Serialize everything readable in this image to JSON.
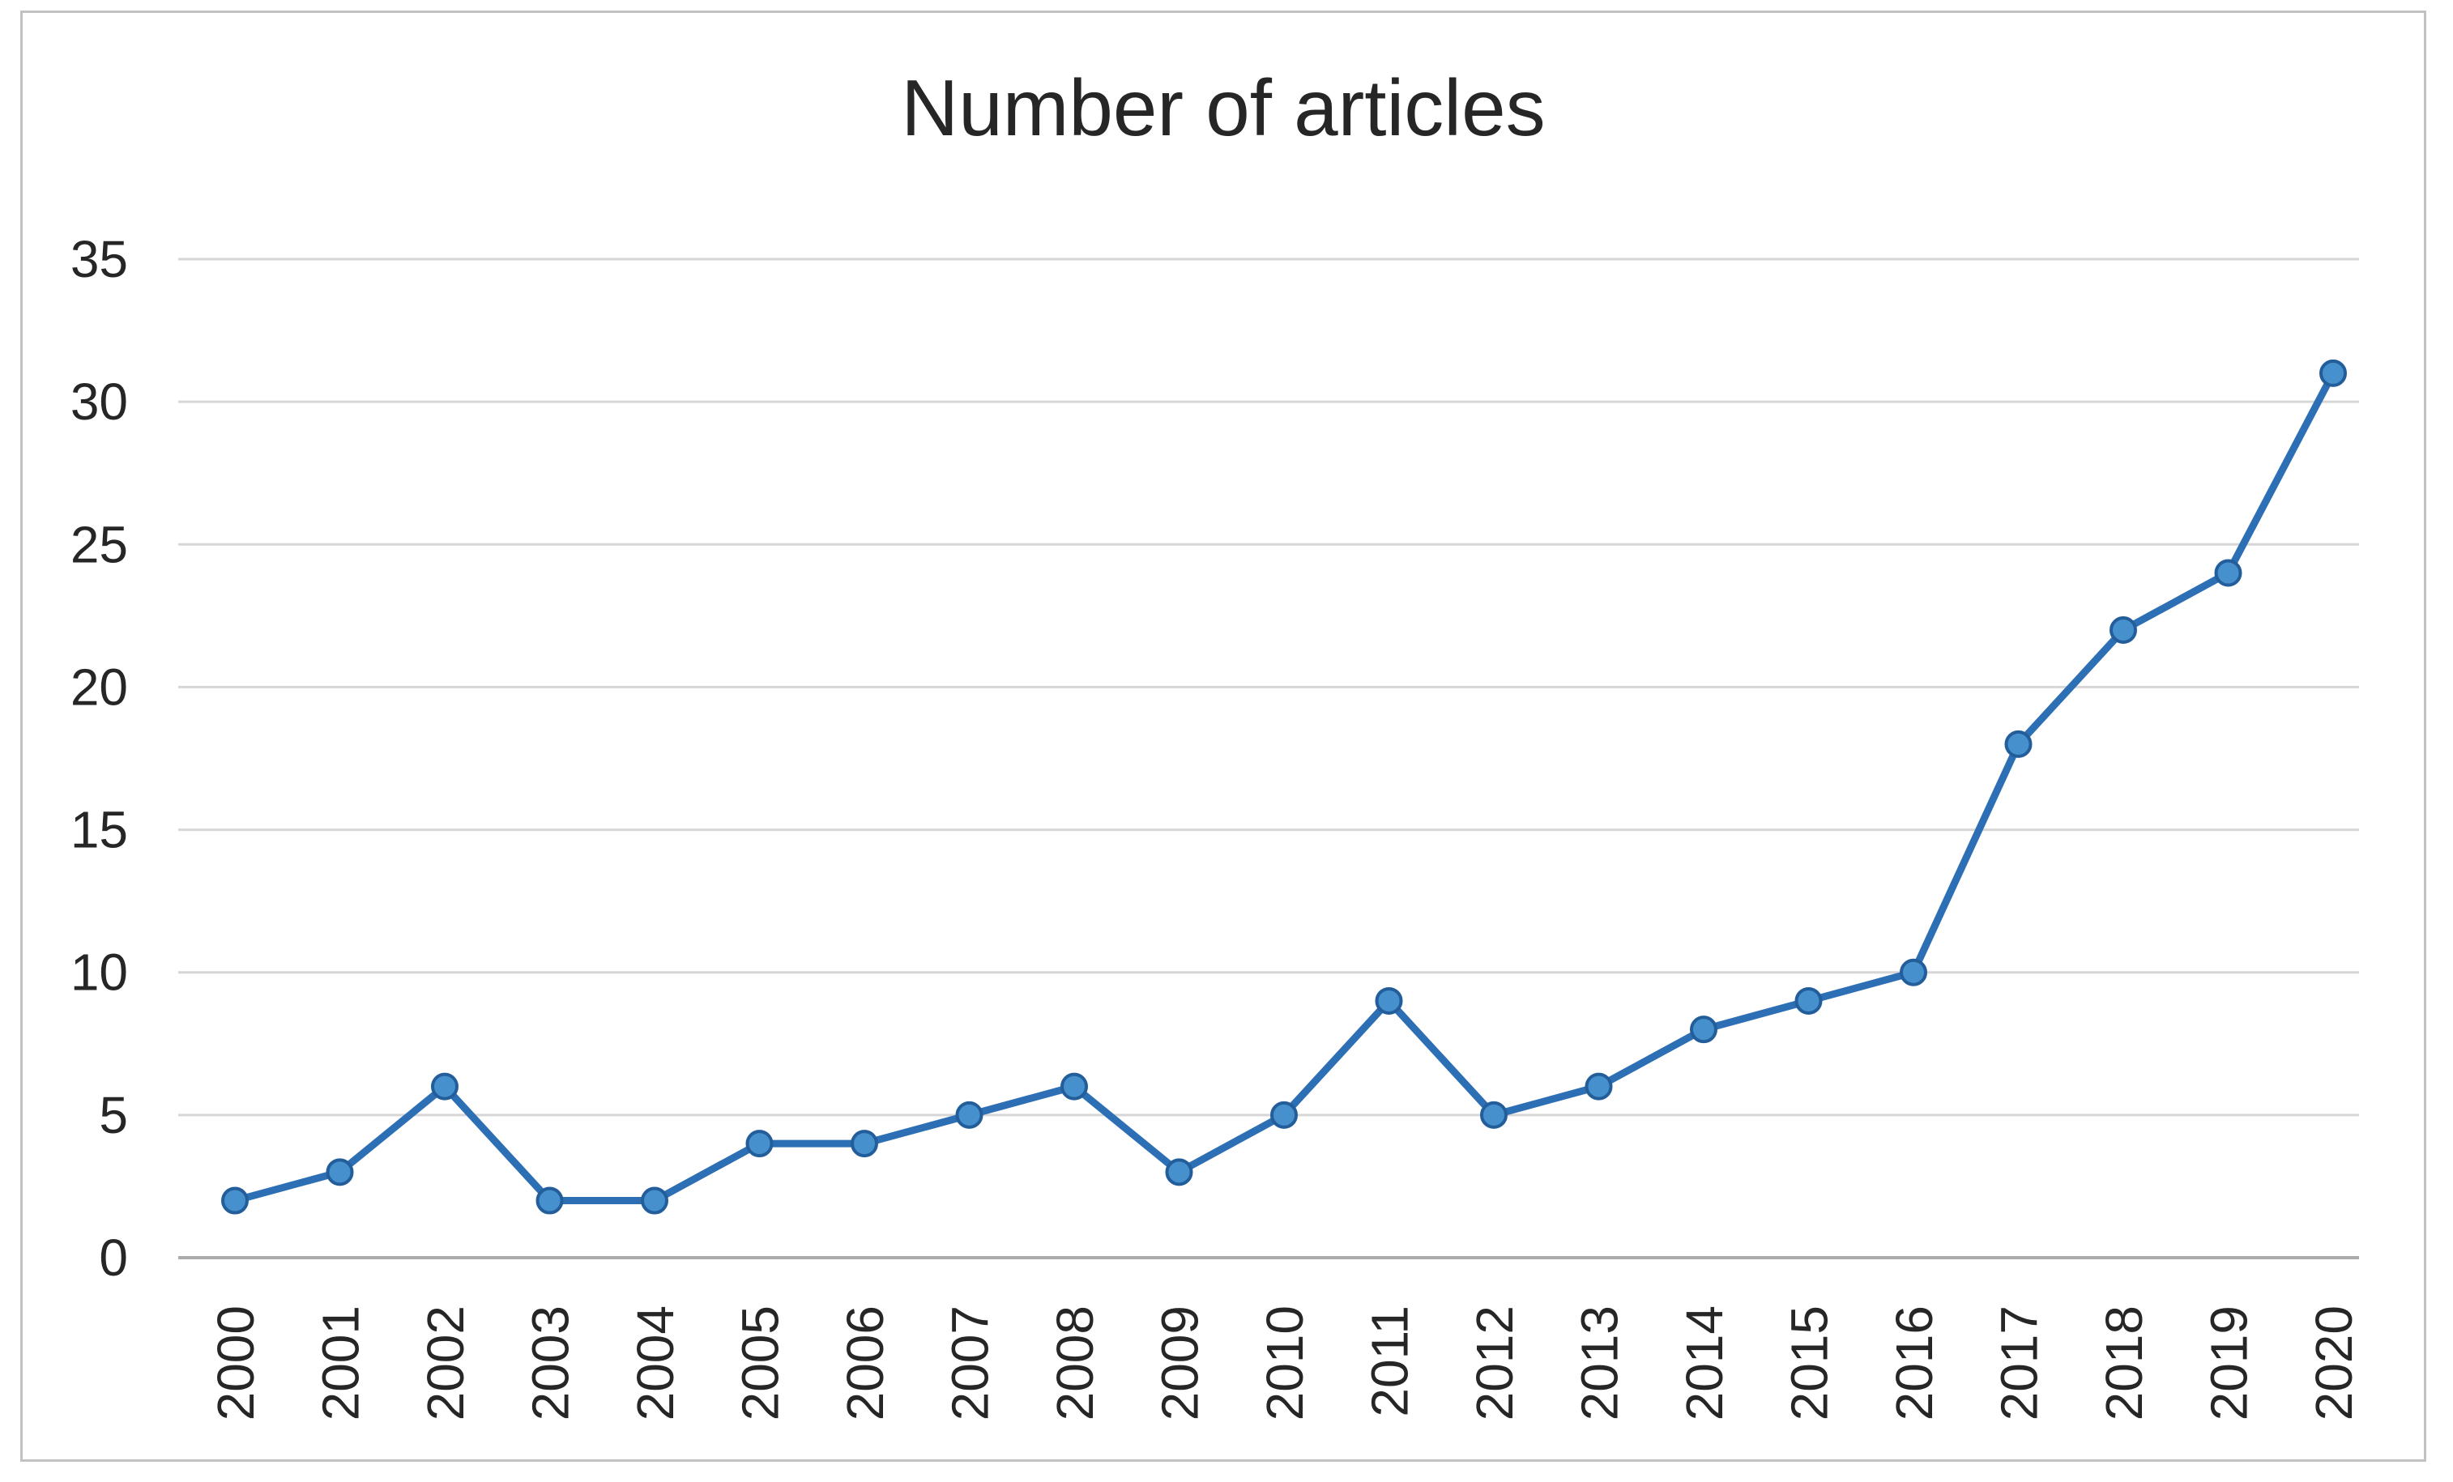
{
  "chart_data": {
    "type": "line",
    "title": "Number of articles",
    "categories": [
      "2000",
      "2001",
      "2002",
      "2003",
      "2004",
      "2005",
      "2006",
      "2007",
      "2008",
      "2009",
      "2010",
      "2011",
      "2012",
      "2013",
      "2014",
      "2015",
      "2016",
      "2017",
      "2018",
      "2019",
      "2020"
    ],
    "series": [
      {
        "name": "Number of articles",
        "values": [
          2,
          3,
          6,
          2,
          2,
          4,
          4,
          5,
          6,
          3,
          5,
          9,
          5,
          6,
          8,
          9,
          10,
          18,
          22,
          24,
          31
        ]
      }
    ],
    "xlabel": "",
    "ylabel": "",
    "ylim": [
      0,
      35
    ],
    "yticks": [
      0,
      5,
      10,
      15,
      20,
      25,
      30,
      35
    ],
    "x_tick_rotation_deg": -90,
    "grid": "horizontal",
    "legend_position": "none",
    "colors": {
      "line": "#2D6FB4",
      "marker_fill": "#4690CE",
      "marker_stroke": "#235E9B",
      "gridline": "#d6d6d6",
      "axis_line": "#ababab",
      "frame_border": "#c2c2c2",
      "text": "#262626"
    }
  }
}
